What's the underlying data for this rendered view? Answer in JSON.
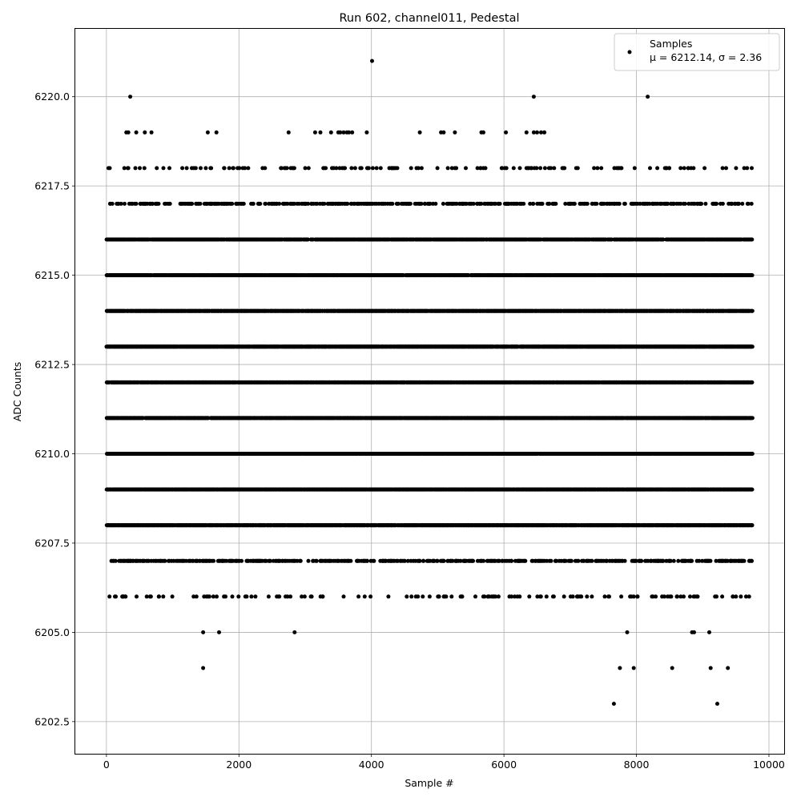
{
  "chart_data": {
    "type": "scatter",
    "title": "Run 602, channel011, Pedestal",
    "xlabel": "Sample #",
    "ylabel": "ADC Counts",
    "xlim": [
      -470,
      10230
    ],
    "ylim": [
      6201.6,
      6221.9
    ],
    "xticks": [
      0,
      2000,
      4000,
      6000,
      8000,
      10000
    ],
    "yticks": [
      6202.5,
      6205.0,
      6207.5,
      6210.0,
      6212.5,
      6215.0,
      6217.5,
      6220.0
    ],
    "xtick_labels": [
      "0",
      "2000",
      "4000",
      "6000",
      "8000",
      "10000"
    ],
    "ytick_labels": [
      "6202.5",
      "6205.0",
      "6207.5",
      "6210.0",
      "6212.5",
      "6215.0",
      "6217.5",
      "6220.0"
    ],
    "grid": true,
    "legend": {
      "position": "top-right",
      "label": "Samples",
      "stats": "μ = 6212.14, σ = 2.36"
    },
    "mean": 6212.14,
    "sigma": 2.36,
    "n_samples": 9750,
    "marker_color": "#000000",
    "level_density": [
      {
        "y": 6202,
        "fraction": 0.0
      },
      {
        "y": 6203,
        "fraction": 0.0002
      },
      {
        "y": 6204,
        "fraction": 0.0006
      },
      {
        "y": 6205,
        "fraction": 0.0006
      },
      {
        "y": 6206,
        "fraction": 0.006
      },
      {
        "y": 6207,
        "fraction": 0.022
      },
      {
        "y": 6208,
        "fraction": 0.06
      },
      {
        "y": 6209,
        "fraction": 0.11
      },
      {
        "y": 6210,
        "fraction": 0.17
      },
      {
        "y": 6211,
        "fraction": 0.19
      },
      {
        "y": 6212,
        "fraction": 0.2
      },
      {
        "y": 6213,
        "fraction": 0.18
      },
      {
        "y": 6214,
        "fraction": 0.14
      },
      {
        "y": 6215,
        "fraction": 0.085
      },
      {
        "y": 6216,
        "fraction": 0.045
      },
      {
        "y": 6217,
        "fraction": 0.018
      },
      {
        "y": 6218,
        "fraction": 0.005
      },
      {
        "y": 6219,
        "fraction": 0.0035
      },
      {
        "y": 6220,
        "fraction": 0.0003
      },
      {
        "y": 6221,
        "fraction": 0.0001
      }
    ],
    "sparse_points": [
      {
        "x": 360,
        "y": 6220
      },
      {
        "x": 6450,
        "y": 6220
      },
      {
        "x": 8170,
        "y": 6220
      },
      {
        "x": 4010,
        "y": 6221
      },
      {
        "x": 7660,
        "y": 6203
      },
      {
        "x": 9220,
        "y": 6203
      },
      {
        "x": 1460,
        "y": 6204
      },
      {
        "x": 7750,
        "y": 6204
      },
      {
        "x": 7960,
        "y": 6204
      },
      {
        "x": 8540,
        "y": 6204
      },
      {
        "x": 9120,
        "y": 6204
      },
      {
        "x": 9380,
        "y": 6204
      },
      {
        "x": 1460,
        "y": 6205
      },
      {
        "x": 1700,
        "y": 6205
      },
      {
        "x": 2840,
        "y": 6205
      },
      {
        "x": 7860,
        "y": 6205
      },
      {
        "x": 8840,
        "y": 6205
      },
      {
        "x": 8870,
        "y": 6205
      },
      {
        "x": 9100,
        "y": 6205
      },
      {
        "x": 30,
        "y": 6218
      },
      {
        "x": 50,
        "y": 6218
      },
      {
        "x": 330,
        "y": 6218
      },
      {
        "x": 760,
        "y": 6218
      },
      {
        "x": 860,
        "y": 6218
      },
      {
        "x": 1500,
        "y": 6218
      },
      {
        "x": 1580,
        "y": 6218
      },
      {
        "x": 1980,
        "y": 6218
      },
      {
        "x": 2140,
        "y": 6218
      },
      {
        "x": 3310,
        "y": 6218
      },
      {
        "x": 3430,
        "y": 6218
      },
      {
        "x": 3470,
        "y": 6218
      },
      {
        "x": 3520,
        "y": 6218
      },
      {
        "x": 3560,
        "y": 6218
      },
      {
        "x": 3600,
        "y": 6218
      },
      {
        "x": 3700,
        "y": 6218
      },
      {
        "x": 3960,
        "y": 6218
      },
      {
        "x": 4020,
        "y": 6218
      },
      {
        "x": 4140,
        "y": 6218
      },
      {
        "x": 4330,
        "y": 6218
      },
      {
        "x": 4680,
        "y": 6218
      },
      {
        "x": 4710,
        "y": 6218
      },
      {
        "x": 5260,
        "y": 6218
      },
      {
        "x": 5280,
        "y": 6218
      },
      {
        "x": 5650,
        "y": 6218
      },
      {
        "x": 5690,
        "y": 6218
      },
      {
        "x": 5720,
        "y": 6218
      },
      {
        "x": 6240,
        "y": 6218
      },
      {
        "x": 6410,
        "y": 6218
      },
      {
        "x": 6460,
        "y": 6218
      },
      {
        "x": 6550,
        "y": 6218
      },
      {
        "x": 6620,
        "y": 6218
      },
      {
        "x": 6680,
        "y": 6218
      },
      {
        "x": 7360,
        "y": 6218
      },
      {
        "x": 8450,
        "y": 6218
      },
      {
        "x": 8780,
        "y": 6218
      },
      {
        "x": 300,
        "y": 6219
      },
      {
        "x": 330,
        "y": 6219
      },
      {
        "x": 450,
        "y": 6219
      },
      {
        "x": 580,
        "y": 6219
      },
      {
        "x": 680,
        "y": 6219
      },
      {
        "x": 1530,
        "y": 6219
      },
      {
        "x": 1660,
        "y": 6219
      },
      {
        "x": 2750,
        "y": 6219
      },
      {
        "x": 3150,
        "y": 6219
      },
      {
        "x": 3230,
        "y": 6219
      },
      {
        "x": 3390,
        "y": 6219
      },
      {
        "x": 3500,
        "y": 6219
      },
      {
        "x": 3530,
        "y": 6219
      },
      {
        "x": 3580,
        "y": 6219
      },
      {
        "x": 3630,
        "y": 6219
      },
      {
        "x": 3660,
        "y": 6219
      },
      {
        "x": 3710,
        "y": 6219
      },
      {
        "x": 3930,
        "y": 6219
      },
      {
        "x": 4730,
        "y": 6219
      },
      {
        "x": 5050,
        "y": 6219
      },
      {
        "x": 5090,
        "y": 6219
      },
      {
        "x": 5260,
        "y": 6219
      },
      {
        "x": 5660,
        "y": 6219
      },
      {
        "x": 5690,
        "y": 6219
      },
      {
        "x": 6030,
        "y": 6219
      },
      {
        "x": 6340,
        "y": 6219
      },
      {
        "x": 6450,
        "y": 6219
      },
      {
        "x": 6500,
        "y": 6219
      },
      {
        "x": 6560,
        "y": 6219
      },
      {
        "x": 6610,
        "y": 6219
      }
    ]
  }
}
